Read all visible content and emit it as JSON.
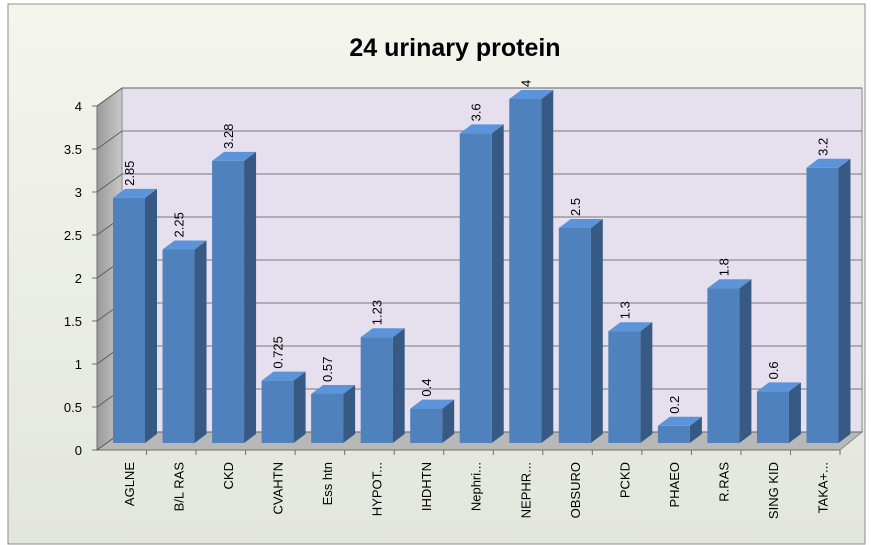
{
  "chart_data": {
    "type": "bar3d",
    "title": "24 urinary protein",
    "categories": [
      "AGLNE",
      "B/L RAS",
      "CKD",
      "CVAHTN",
      "Ess htn",
      "HYPOT...",
      "IHDHTN",
      "Nephri...",
      "NEPHR...",
      "OBSURO",
      "PCKD",
      "PHAEO",
      "R.RAS",
      "SING KID",
      "TAKA+..."
    ],
    "values": [
      2.85,
      2.25,
      3.28,
      0.725,
      0.57,
      1.23,
      0.4,
      3.6,
      4,
      2.5,
      1.3,
      0.2,
      1.8,
      0.6,
      3.2
    ],
    "color": "#4f81bd",
    "ylim": [
      0,
      4
    ],
    "yticks": [
      0,
      0.5,
      1,
      1.5,
      2,
      2.5,
      3,
      3.5,
      4
    ],
    "grid": true
  }
}
